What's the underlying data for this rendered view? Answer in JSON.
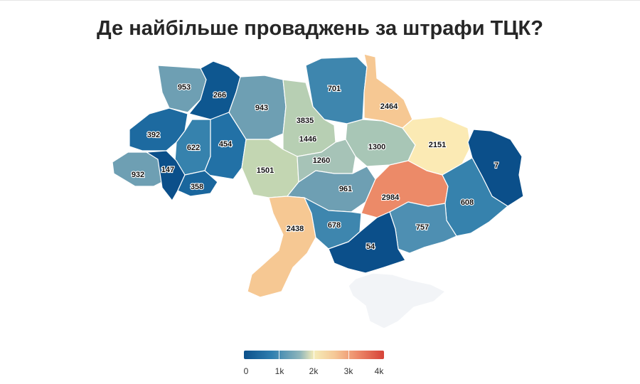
{
  "title": "Де найбільше проваджень за штрафи ТЦК?",
  "legend": {
    "ticks": [
      "0",
      "1k",
      "2k",
      "3k",
      "4k"
    ],
    "colors": [
      "#0b4f8a",
      "#2f7fb0",
      "#8fb6bb",
      "#f5ecb8",
      "#f5c796",
      "#ee8e6c",
      "#d64238"
    ]
  },
  "regions": [
    {
      "value": "953",
      "fill": "#6e9fb3"
    },
    {
      "value": "266",
      "fill": "#0e5790"
    },
    {
      "value": "943",
      "fill": "#6e9fb3"
    },
    {
      "value": "701",
      "fill": "#3e86ae"
    },
    {
      "value": "2464",
      "fill": "#f6c893"
    },
    {
      "value": "392",
      "fill": "#1d6aa0"
    },
    {
      "value": "622",
      "fill": "#3682ad"
    },
    {
      "value": "454",
      "fill": "#2271a6"
    },
    {
      "value": "3835",
      "fill": "#cf3f35"
    },
    {
      "value": "1446",
      "fill": "#b7cfb3"
    },
    {
      "value": "1300",
      "fill": "#a8c6b6"
    },
    {
      "value": "2151",
      "fill": "#fbeab4"
    },
    {
      "value": "7",
      "fill": "#0b4f8a"
    },
    {
      "value": "932",
      "fill": "#6e9fb3"
    },
    {
      "value": "147",
      "fill": "#0b4f8a"
    },
    {
      "value": "358",
      "fill": "#1a669d"
    },
    {
      "value": "1501",
      "fill": "#c3d6b2"
    },
    {
      "value": "1260",
      "fill": "#a6c3b7"
    },
    {
      "value": "961",
      "fill": "#6e9fb3"
    },
    {
      "value": "2984",
      "fill": "#ec8a68"
    },
    {
      "value": "608",
      "fill": "#3682ad"
    },
    {
      "value": "2438",
      "fill": "#f6c893"
    },
    {
      "value": "678",
      "fill": "#3e86ae"
    },
    {
      "value": "757",
      "fill": "#4e8fb2"
    },
    {
      "value": "54",
      "fill": "#0b4f8a"
    },
    {
      "value": "",
      "fill": "#f2f4f7"
    }
  ]
}
